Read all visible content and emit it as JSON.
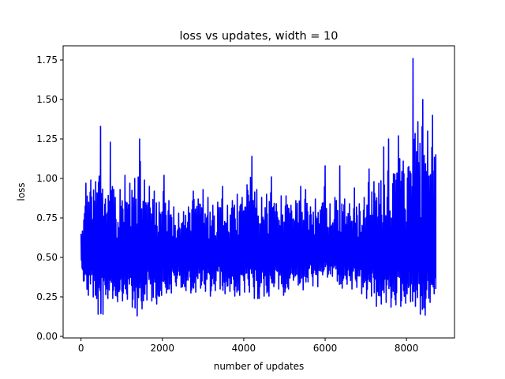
{
  "chart_data": {
    "type": "line",
    "title": "loss vs updates, width = 10",
    "xlabel": "number of updates",
    "ylabel": "loss",
    "xlim": [
      -440,
      9180
    ],
    "ylim": [
      -0.01,
      1.84
    ],
    "xticks": [
      0,
      2000,
      4000,
      6000,
      8000
    ],
    "xtick_labels": [
      "0",
      "2000",
      "4000",
      "6000",
      "8000"
    ],
    "yticks": [
      0.0,
      0.25,
      0.5,
      0.75,
      1.0,
      1.25,
      1.5,
      1.75
    ],
    "ytick_labels": [
      "0.00",
      "0.25",
      "0.50",
      "0.75",
      "1.00",
      "1.25",
      "1.50",
      "1.75"
    ],
    "grid": false,
    "legend": "none",
    "series": [
      {
        "color": "#0000ff",
        "x": [
          0,
          120,
          240,
          360,
          480,
          600,
          720,
          840,
          960,
          1080,
          1200,
          1320,
          1440,
          1560,
          1680,
          1800,
          1920,
          2040,
          2160,
          2280,
          2400,
          2520,
          2640,
          2760,
          2880,
          3000,
          3120,
          3240,
          3360,
          3480,
          3600,
          3720,
          3840,
          3960,
          4080,
          4200,
          4320,
          4440,
          4560,
          4680,
          4800,
          4920,
          5040,
          5160,
          5280,
          5400,
          5520,
          5640,
          5760,
          5880,
          6000,
          6120,
          6240,
          6360,
          6480,
          6600,
          6720,
          6840,
          6960,
          7080,
          7200,
          7320,
          7440,
          7560,
          7680,
          7800,
          7920,
          8040,
          8160,
          8280,
          8400,
          8520,
          8640,
          8720
        ],
        "y_low": [
          0.48,
          0.22,
          0.3,
          0.2,
          0.08,
          0.2,
          0.28,
          0.2,
          0.24,
          0.21,
          0.26,
          0.11,
          0.15,
          0.2,
          0.26,
          0.19,
          0.22,
          0.3,
          0.25,
          0.3,
          0.34,
          0.28,
          0.3,
          0.25,
          0.31,
          0.3,
          0.27,
          0.24,
          0.34,
          0.26,
          0.28,
          0.29,
          0.22,
          0.3,
          0.26,
          0.3,
          0.18,
          0.3,
          0.21,
          0.3,
          0.33,
          0.27,
          0.25,
          0.35,
          0.36,
          0.29,
          0.3,
          0.39,
          0.25,
          0.38,
          0.4,
          0.35,
          0.41,
          0.29,
          0.32,
          0.34,
          0.26,
          0.36,
          0.18,
          0.3,
          0.21,
          0.17,
          0.24,
          0.19,
          0.18,
          0.22,
          0.16,
          0.26,
          0.18,
          0.2,
          0.08,
          0.19,
          0.24,
          0.3
        ],
        "y_high": [
          0.65,
          0.97,
          0.99,
          0.98,
          1.33,
          0.87,
          1.23,
          0.88,
          0.93,
          1.02,
          0.97,
          1.0,
          1.25,
          0.99,
          0.95,
          0.92,
          0.85,
          1.02,
          0.86,
          0.82,
          0.78,
          0.79,
          0.82,
          0.92,
          0.87,
          0.93,
          0.88,
          0.83,
          0.85,
          0.95,
          0.83,
          0.86,
          0.9,
          0.88,
          0.96,
          1.14,
          0.93,
          0.88,
          0.9,
          1.01,
          0.84,
          0.89,
          0.89,
          0.83,
          0.86,
          0.95,
          0.93,
          0.82,
          0.87,
          0.8,
          1.08,
          0.84,
          0.88,
          1.08,
          0.87,
          0.84,
          0.94,
          0.84,
          0.88,
          1.06,
          0.98,
          0.97,
          1.2,
          1.25,
          1.03,
          1.27,
          1.11,
          1.07,
          1.76,
          1.36,
          1.5,
          1.3,
          1.4,
          1.15
        ]
      }
    ]
  }
}
